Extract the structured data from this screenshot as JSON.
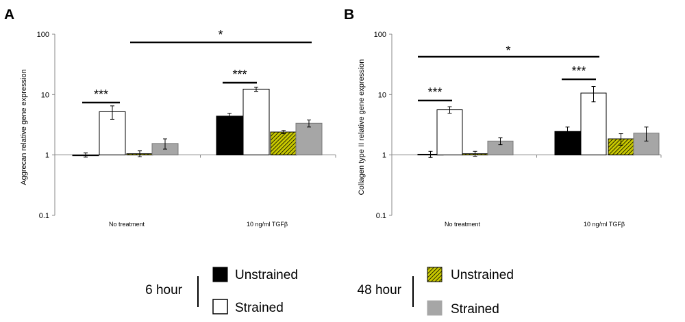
{
  "figure_colors": {
    "unstrained_6h": "#000000",
    "strained_6h": "#ffffff",
    "unstrained_48h_hatch_fill": "#c8c800",
    "strained_48h": "#a6a6a6"
  },
  "chart_data": [
    {
      "panel": "A",
      "type": "bar",
      "yscale": "log",
      "ylim": [
        0.1,
        100
      ],
      "yticks": [
        "0.1",
        "1",
        "10",
        "100"
      ],
      "ylabel": "Aggrecan relative gene expression",
      "categories": [
        "No treatment",
        "10 ng/ml TGFβ"
      ],
      "series": [
        {
          "name": "6 hour Unstrained",
          "values": [
            1.0,
            4.4
          ],
          "errors": [
            0.08,
            0.5
          ]
        },
        {
          "name": "6 hour Strained",
          "values": [
            5.2,
            12.3
          ],
          "errors": [
            1.3,
            1.0
          ]
        },
        {
          "name": "48 hour Unstrained",
          "values": [
            1.05,
            2.4
          ],
          "errors": [
            0.12,
            0.15
          ]
        },
        {
          "name": "48 hour Strained",
          "values": [
            1.55,
            3.35
          ],
          "errors": [
            0.3,
            0.45
          ]
        }
      ],
      "significance": [
        {
          "label": "***",
          "category": 0,
          "from_series": 0,
          "to_series": 1
        },
        {
          "label": "***",
          "category": 1,
          "from_series": 0,
          "to_series": 1
        },
        {
          "label": "*",
          "category": "across",
          "note": "spans No treatment to 10 ng/ml TGFβ"
        }
      ]
    },
    {
      "panel": "B",
      "type": "bar",
      "yscale": "log",
      "ylim": [
        0.1,
        100
      ],
      "yticks": [
        "0.1",
        "1",
        "10",
        "100"
      ],
      "ylabel": "Collagen type II relative gene expression",
      "categories": [
        "No treatment",
        "10 ng/ml TGFβ"
      ],
      "series": [
        {
          "name": "6 hour Unstrained",
          "values": [
            1.03,
            2.45
          ],
          "errors": [
            0.12,
            0.45
          ]
        },
        {
          "name": "6 hour Strained",
          "values": [
            5.6,
            10.6
          ],
          "errors": [
            0.7,
            3.0
          ]
        },
        {
          "name": "48 hour Unstrained",
          "values": [
            1.05,
            1.85
          ],
          "errors": [
            0.1,
            0.4
          ]
        },
        {
          "name": "48 hour Strained",
          "values": [
            1.7,
            2.3
          ],
          "errors": [
            0.22,
            0.6
          ]
        }
      ],
      "significance": [
        {
          "label": "***",
          "category": 0,
          "from_series": 0,
          "to_series": 1
        },
        {
          "label": "***",
          "category": 1,
          "from_series": 0,
          "to_series": 1
        },
        {
          "label": "*",
          "category": "across",
          "note": "spans No treatment to 10 ng/ml TGFβ"
        }
      ]
    }
  ],
  "legend": {
    "groups": [
      {
        "label": "6 hour",
        "items": [
          {
            "label": "Unstrained",
            "series": "6 hour Unstrained"
          },
          {
            "label": "Strained",
            "series": "6 hour Strained"
          }
        ]
      },
      {
        "label": "48 hour",
        "items": [
          {
            "label": "Unstrained",
            "series": "48 hour Unstrained"
          },
          {
            "label": "Strained",
            "series": "48 hour Strained"
          }
        ]
      }
    ]
  }
}
